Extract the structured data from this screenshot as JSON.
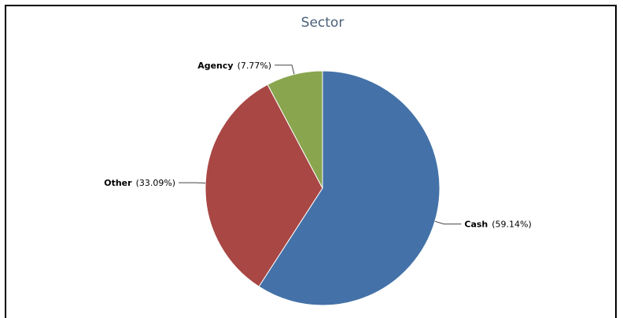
{
  "chart_data": {
    "type": "pie",
    "title": "Sector",
    "slices": [
      {
        "label": "Cash",
        "value": 59.14,
        "pct_label": "(59.14%)",
        "color": "#4472a8"
      },
      {
        "label": "Other",
        "value": 33.09,
        "pct_label": "(33.09%)",
        "color": "#a84744"
      },
      {
        "label": "Agency",
        "value": 7.77,
        "pct_label": "(7.77%)",
        "color": "#89a54e"
      }
    ],
    "start": "12 o'clock",
    "direction": "clockwise",
    "legend": "none"
  }
}
